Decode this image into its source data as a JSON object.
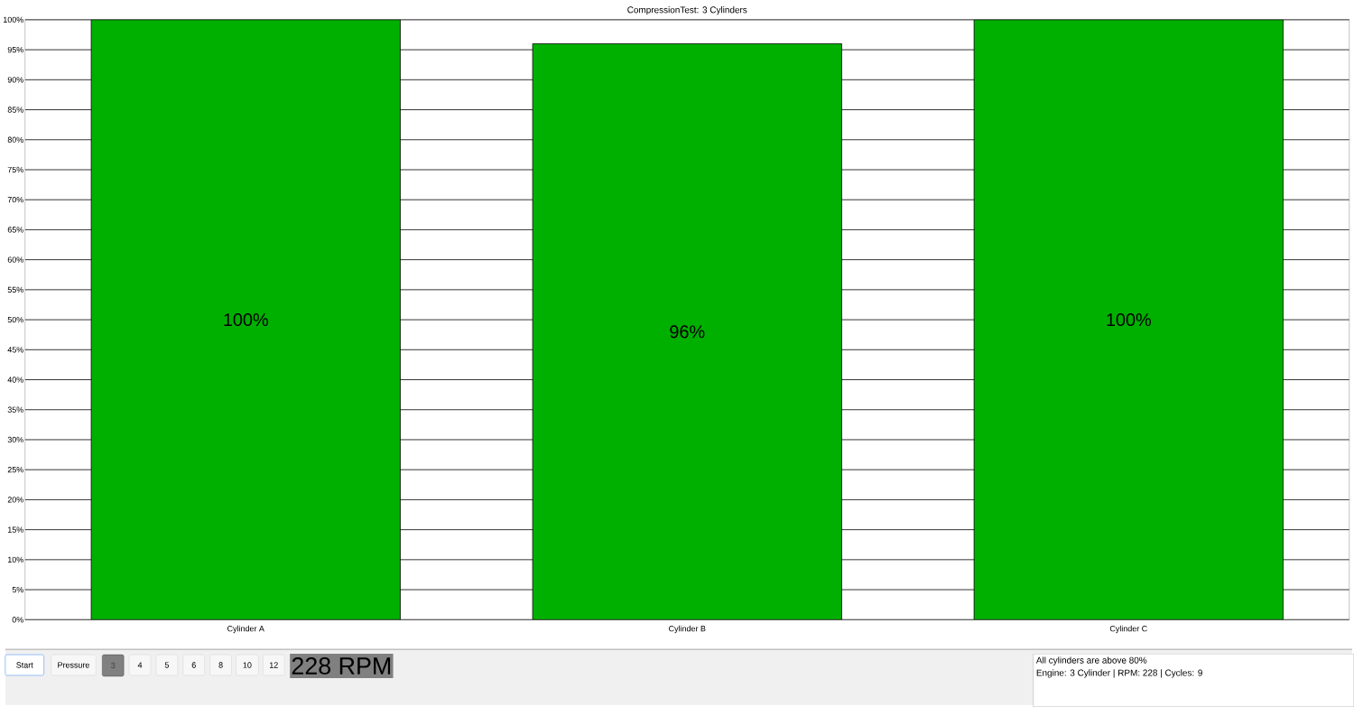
{
  "chart_data": {
    "type": "bar",
    "title": "CompressionTest: 3 Cylinders",
    "categories": [
      "Cylinder A",
      "Cylinder B",
      "Cylinder C"
    ],
    "values": [
      100,
      96,
      100
    ],
    "color": "#00b000",
    "value_labels": [
      "100%",
      "96%",
      "100%"
    ],
    "ylim": [
      0,
      100
    ],
    "yticks": [
      {
        "value": 0,
        "label": "0%"
      },
      {
        "value": 5,
        "label": "5%"
      },
      {
        "value": 10,
        "label": "10%"
      },
      {
        "value": 15,
        "label": "15%"
      },
      {
        "value": 20,
        "label": "20%"
      },
      {
        "value": 25,
        "label": "25%"
      },
      {
        "value": 30,
        "label": "30%"
      },
      {
        "value": 35,
        "label": "35%"
      },
      {
        "value": 40,
        "label": "40%"
      },
      {
        "value": 45,
        "label": "45%"
      },
      {
        "value": 50,
        "label": "50%"
      },
      {
        "value": 55,
        "label": "55%"
      },
      {
        "value": 60,
        "label": "60%"
      },
      {
        "value": 65,
        "label": "65%"
      },
      {
        "value": 70,
        "label": "70%"
      },
      {
        "value": 75,
        "label": "75%"
      },
      {
        "value": 80,
        "label": "80%"
      },
      {
        "value": 85,
        "label": "85%"
      },
      {
        "value": 90,
        "label": "90%"
      },
      {
        "value": 95,
        "label": "95%"
      },
      {
        "value": 100,
        "label": "100%"
      }
    ],
    "grid": "y",
    "annotations": [
      "Start",
      "Pressure",
      "3",
      "4",
      "5",
      "6",
      "8",
      "10",
      "12",
      "228 RPM",
      "All cylinders are above 80%",
      "Engine: 3 Cylinder | RPM: 228 | Cycles: 9"
    ]
  }
}
